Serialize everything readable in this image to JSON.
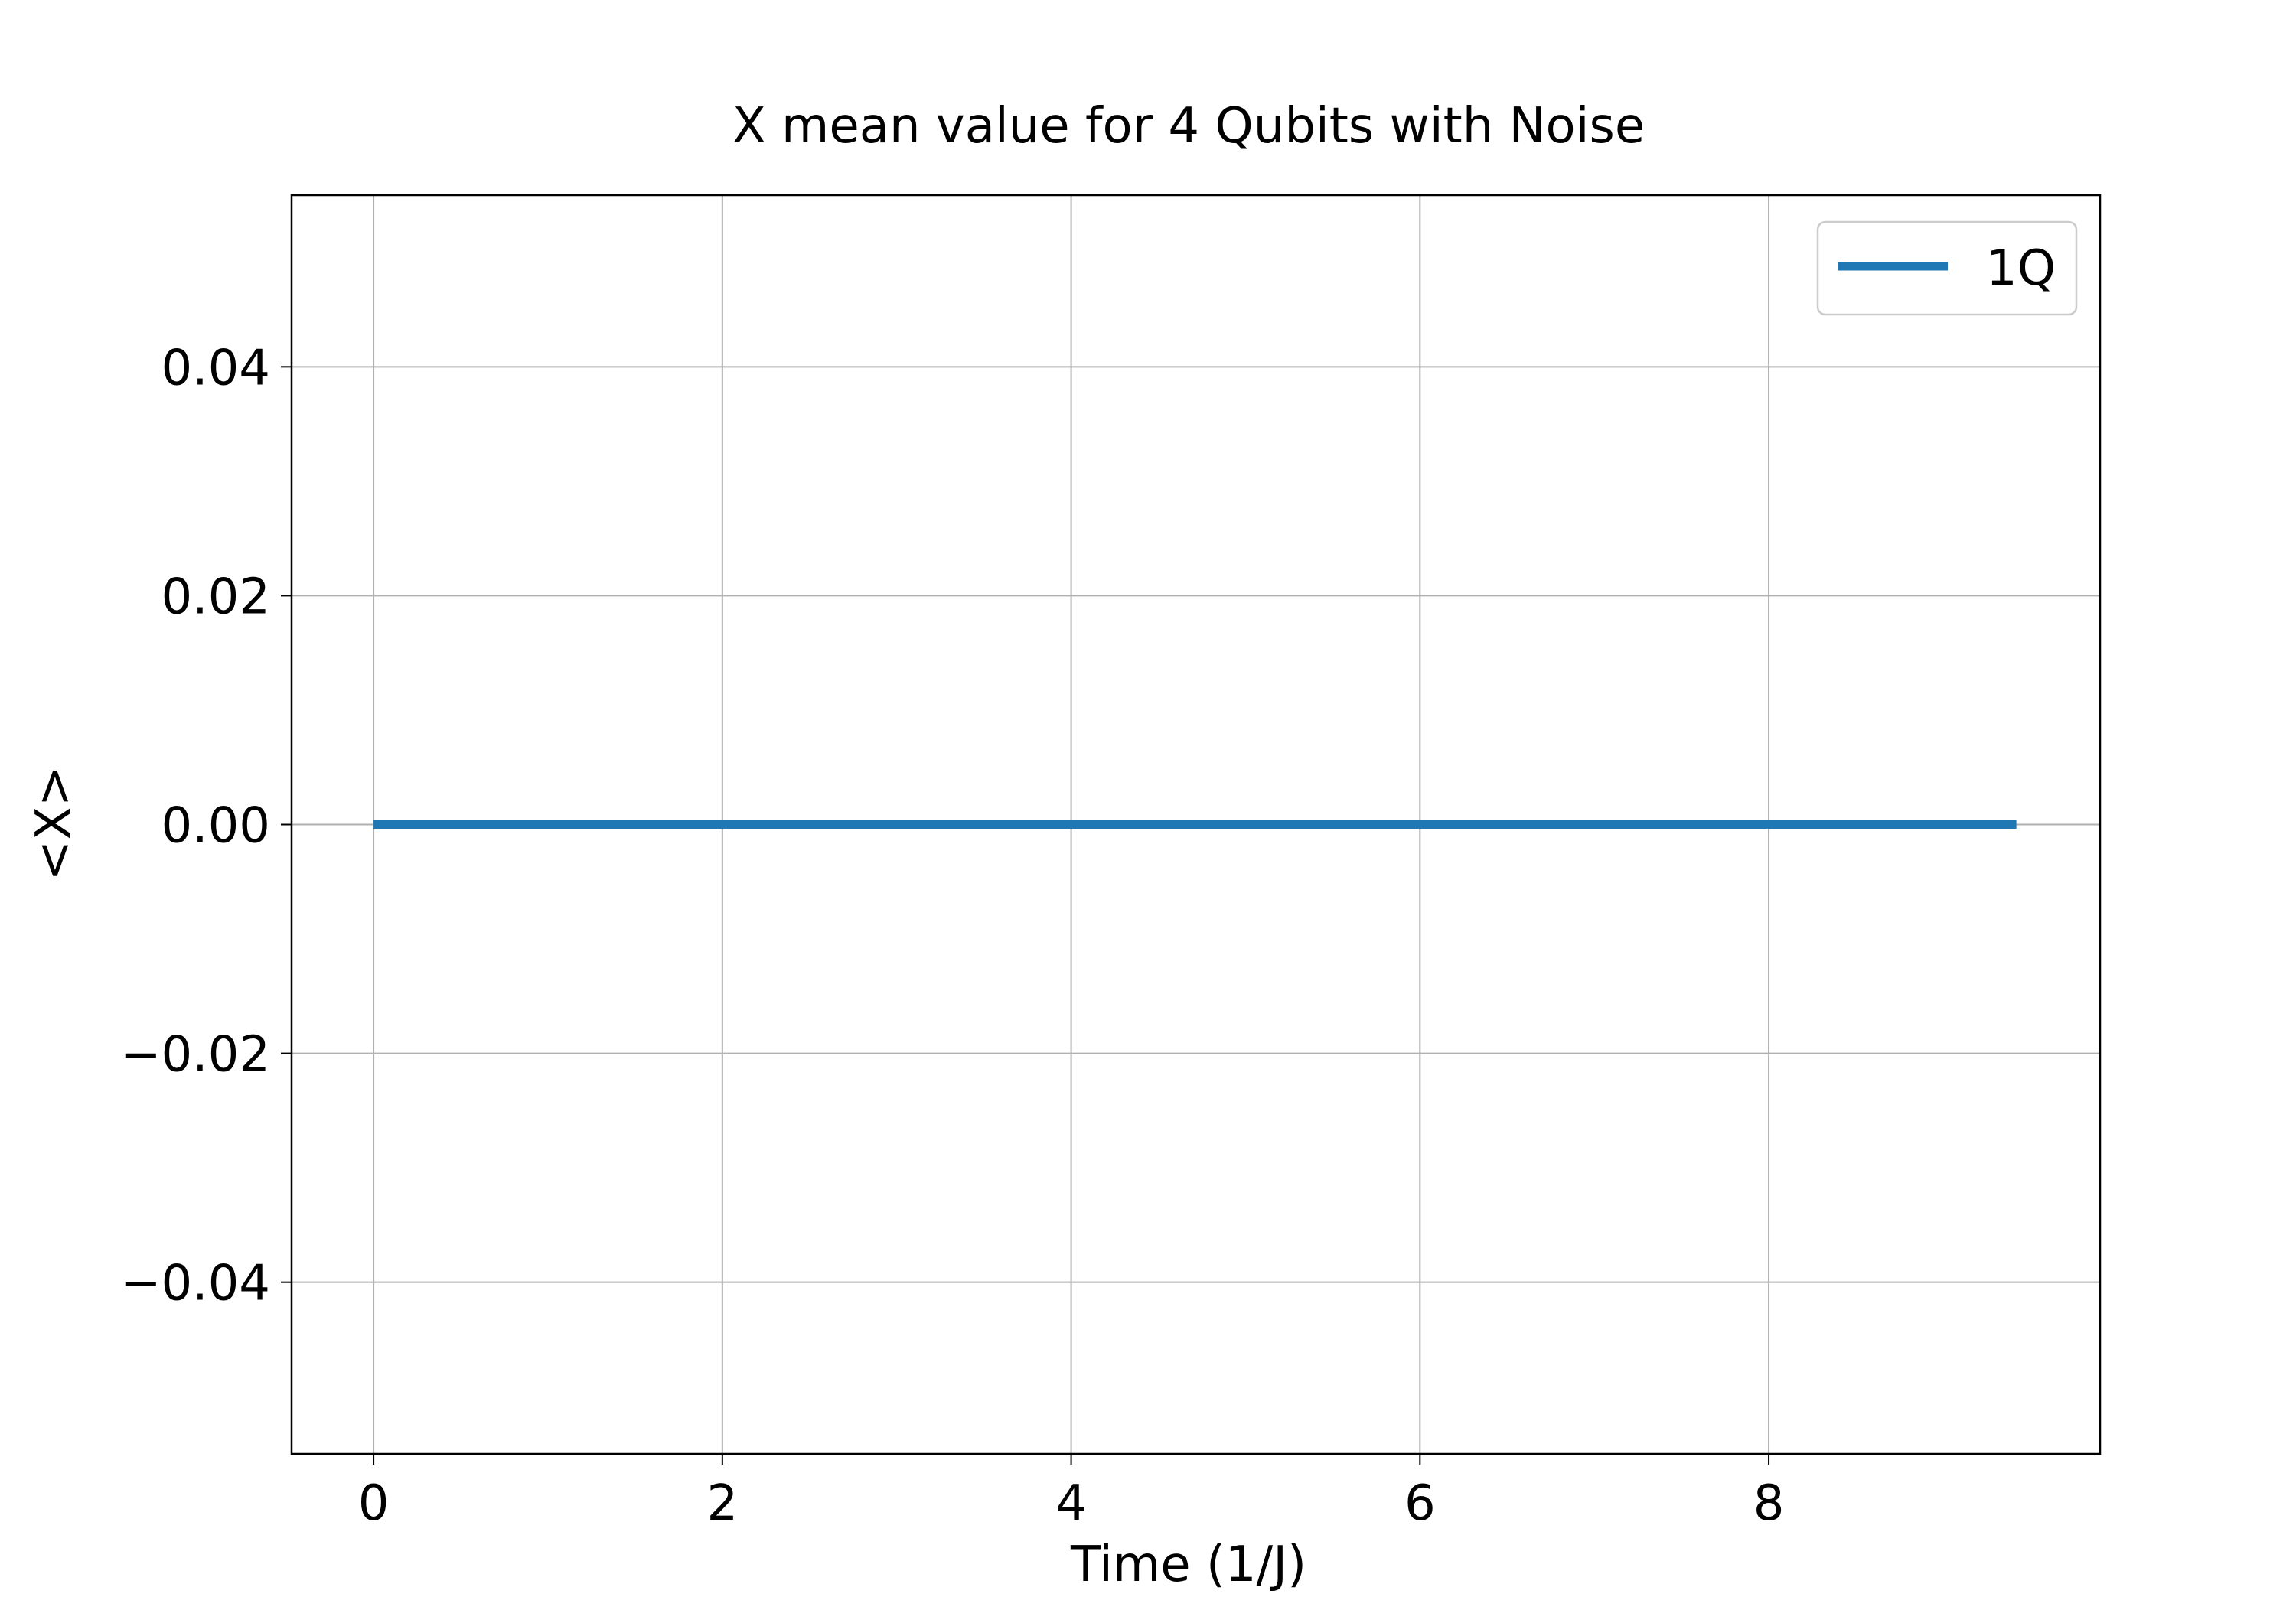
{
  "chart_data": {
    "type": "line",
    "title": "X mean value for 4 Qubits with Noise",
    "xlabel": "Time (1/J)",
    "ylabel": "<X>",
    "xlim": [
      -0.47,
      9.9
    ],
    "ylim": [
      -0.055,
      0.055
    ],
    "x_ticks": [
      0,
      2,
      4,
      6,
      8
    ],
    "x_tick_labels": [
      "0",
      "2",
      "4",
      "6",
      "8"
    ],
    "y_ticks": [
      -0.04,
      -0.02,
      0.0,
      0.02,
      0.04
    ],
    "y_tick_labels": [
      "−0.04",
      "−0.02",
      "0.00",
      "0.02",
      "0.04"
    ],
    "grid": true,
    "legend_position": "top-right",
    "series": [
      {
        "name": "1Q",
        "color": "#1f77b4",
        "x": [
          0,
          9.42
        ],
        "y": [
          0,
          0
        ]
      }
    ]
  }
}
